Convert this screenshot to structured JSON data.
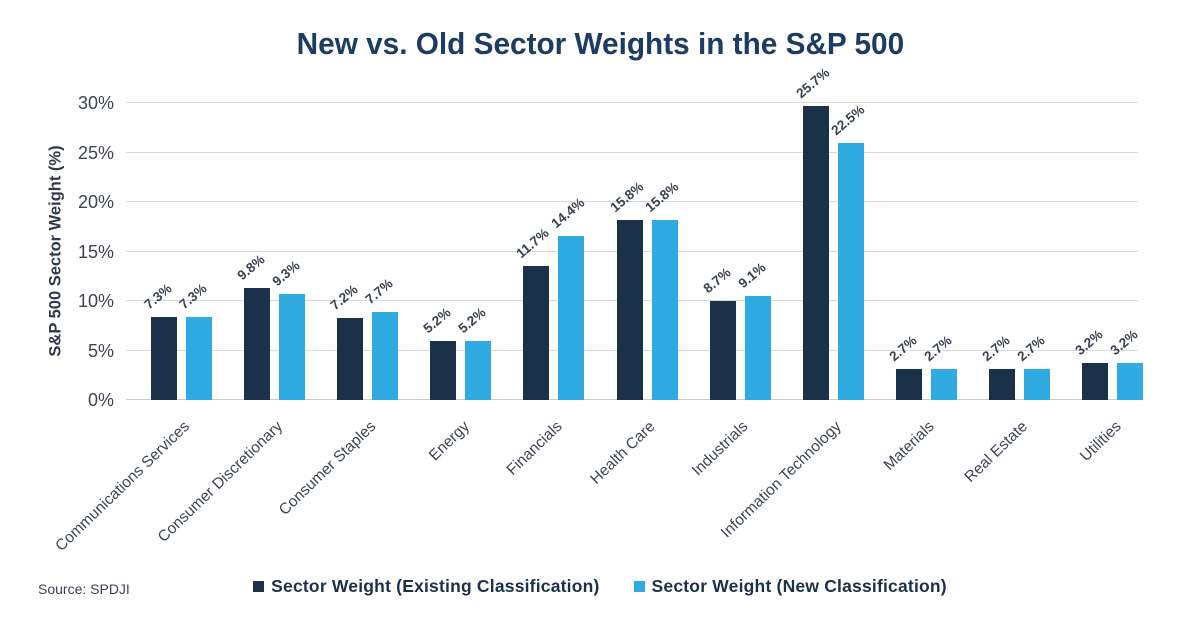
{
  "source": "Source: SPDJI",
  "colors": {
    "navy": "#1b3049",
    "blue": "#2fabe1",
    "title_text": "#1c3c64",
    "axis_text": "#3f4450",
    "gridline": "#d9d9d9"
  },
  "chart_data": {
    "type": "bar",
    "title": "New vs. Old Sector Weights in the S&P 500",
    "xlabel": "",
    "ylabel": "S&P 500 Sector Weight (%)",
    "ylim": [
      0,
      30
    ],
    "ytick_step": 5,
    "ytick_labels": [
      "0%",
      "5%",
      "10%",
      "15%",
      "20%",
      "25%",
      "30%"
    ],
    "grid": true,
    "legend_position": "bottom",
    "data_labels": true,
    "categories": [
      "Communications Services",
      "Consumer Discretionary",
      "Consumer Staples",
      "Energy",
      "Financials",
      "Health Care",
      "Industrials",
      "Information Technology",
      "Materials",
      "Real Estate",
      "Utilities"
    ],
    "series": [
      {
        "name": "Sector Weight (Existing Classification)",
        "color": "#1b3049",
        "values": [
          7.3,
          9.8,
          7.2,
          5.2,
          11.7,
          15.8,
          8.7,
          25.7,
          2.7,
          2.7,
          3.2
        ]
      },
      {
        "name": "Sector Weight (New Classification)",
        "color": "#2fabe1",
        "values": [
          7.3,
          9.3,
          7.7,
          5.2,
          14.4,
          15.8,
          9.1,
          22.5,
          2.7,
          2.7,
          3.2
        ]
      }
    ]
  }
}
